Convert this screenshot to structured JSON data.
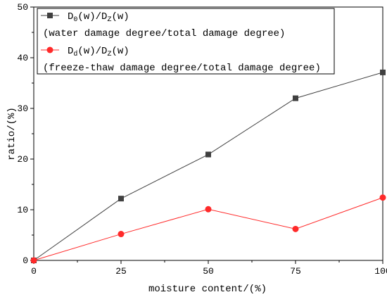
{
  "chart_data": {
    "type": "line",
    "xlabel": "moisture content/(%)",
    "ylabel": "ratio/(%)",
    "xlim": [
      0,
      100
    ],
    "ylim": [
      0,
      50
    ],
    "x_ticks": [
      0,
      25,
      50,
      75,
      100
    ],
    "y_ticks": [
      0,
      10,
      20,
      30,
      40,
      50
    ],
    "x": [
      0,
      25,
      50,
      75,
      100
    ],
    "series": [
      {
        "name": "D0(w)/DZ(w)",
        "name_parts": {
          "a": "D",
          "a_sub": "0",
          "b": "(w)/D",
          "b_sub": "Z",
          "c": "(w)"
        },
        "description": "(water damage degree/total damage degree)",
        "values": [
          0,
          12.2,
          20.9,
          32.0,
          37.1
        ],
        "color": "#404040",
        "marker": "square"
      },
      {
        "name": "Dd(w)/DZ(w)",
        "name_parts": {
          "a": "D",
          "a_sub": "d",
          "b": "(w)/D",
          "b_sub": "Z",
          "c": "(w)"
        },
        "description": "(freeze-thaw damage degree/total damage degree)",
        "values": [
          0,
          5.2,
          10.1,
          6.2,
          12.4
        ],
        "color": "#ff2a2a",
        "marker": "circle"
      }
    ],
    "legend_position": "top-left",
    "grid": false
  }
}
